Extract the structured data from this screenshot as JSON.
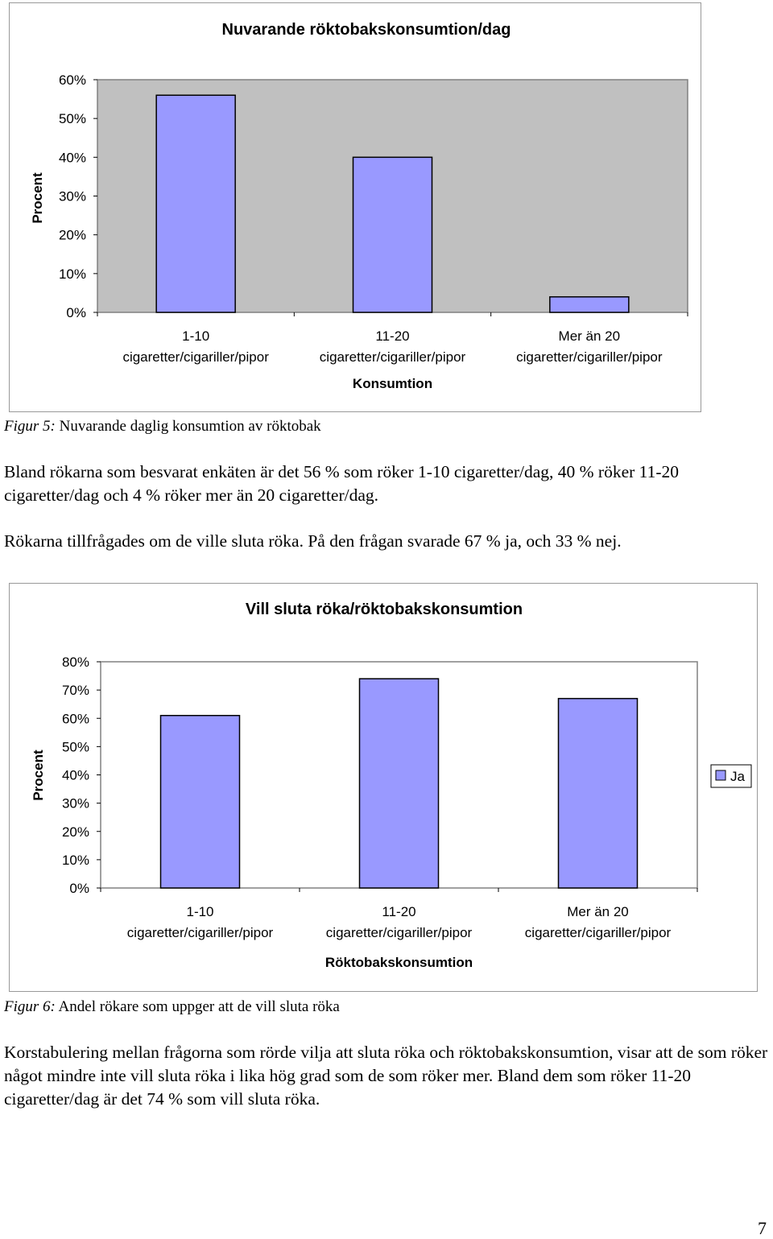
{
  "charts": [
    {
      "title": "Nuvarande röktobakskonsumtion/dag",
      "ylabel": "Procent",
      "xlabel": "Konsumtion",
      "caption_prefix": "Figur 5:",
      "caption_text": " Nuvarande daglig konsumtion av röktobak",
      "colors": {
        "plot_bg": "#c0c0c0",
        "bar": "#9999ff"
      }
    },
    {
      "title": "Vill sluta röka/röktobakskonsumtion",
      "ylabel": "Procent",
      "xlabel": "Röktobakskonsumtion",
      "legend_label": "Ja",
      "caption_prefix": "Figur 6:",
      "caption_text": " Andel rökare som uppger att de vill sluta röka",
      "colors": {
        "plot_bg": "#ffffff",
        "bar": "#9999ff"
      }
    }
  ],
  "paragraphs": {
    "p1": "Bland rökarna som besvarat enkäten är det 56 % som röker 1-10 cigaretter/dag, 40 % röker 11-20 cigaretter/dag och 4 % röker mer än 20 cigaretter/dag.",
    "p2": "Rökarna tillfrågades om de ville sluta röka. På den frågan svarade 67 % ja, och 33 % nej.",
    "p3": "Korstabulering mellan frågorna som rörde vilja att sluta röka och röktobakskonsumtion, visar att de som röker något mindre inte vill sluta röka i lika hög grad som de som röker mer. Bland dem som röker 11-20 cigaretter/dag är det 74 % som vill sluta röka."
  },
  "page_number": "7",
  "chart_data": [
    {
      "type": "bar",
      "title": "Nuvarande röktobakskonsumtion/dag",
      "xlabel": "Konsumtion",
      "ylabel": "Procent",
      "categories": [
        [
          "1-10",
          "cigaretter/cigariller/pipor"
        ],
        [
          "11-20",
          "cigaretter/cigariller/pipor"
        ],
        [
          "Mer än 20",
          "cigaretter/cigariller/pipor"
        ]
      ],
      "values": [
        56,
        40,
        4
      ],
      "yticks": [
        "0%",
        "10%",
        "20%",
        "30%",
        "40%",
        "50%",
        "60%"
      ],
      "ylim": [
        0,
        60
      ],
      "grid": false,
      "legend": null
    },
    {
      "type": "bar",
      "title": "Vill sluta röka/röktobakskonsumtion",
      "xlabel": "Röktobakskonsumtion",
      "ylabel": "Procent",
      "categories": [
        [
          "1-10",
          "cigaretter/cigariller/pipor"
        ],
        [
          "11-20",
          "cigaretter/cigariller/pipor"
        ],
        [
          "Mer än 20",
          "cigaretter/cigariller/pipor"
        ]
      ],
      "series": [
        {
          "name": "Ja",
          "values": [
            61,
            74,
            67
          ]
        }
      ],
      "yticks": [
        "0%",
        "10%",
        "20%",
        "30%",
        "40%",
        "50%",
        "60%",
        "70%",
        "80%"
      ],
      "ylim": [
        0,
        80
      ],
      "grid": false,
      "legend": "right"
    }
  ]
}
